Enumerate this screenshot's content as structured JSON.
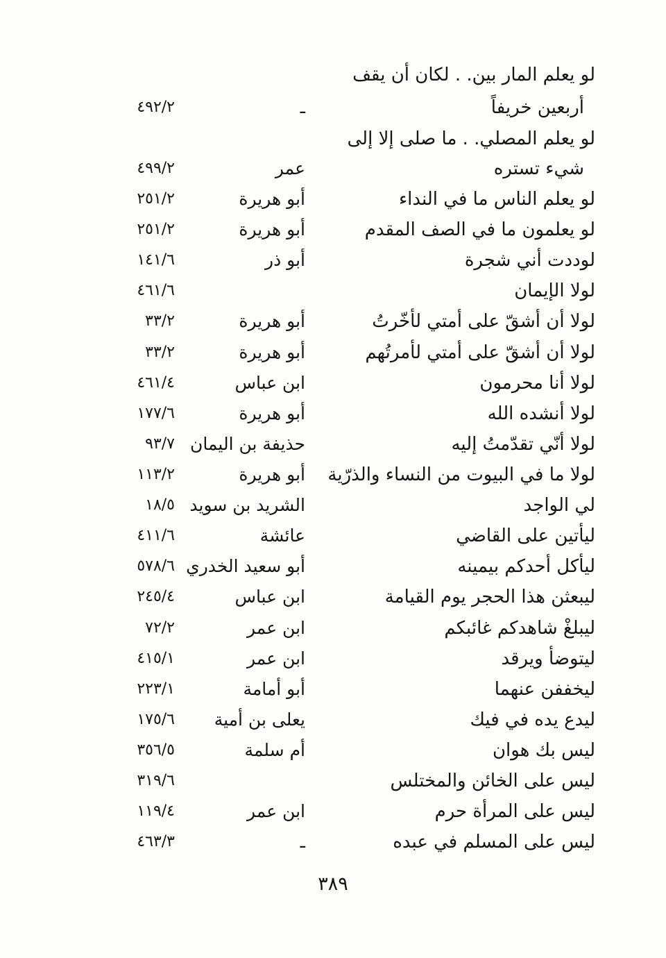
{
  "page": {
    "number": "٣٨٩"
  },
  "entries": [
    {
      "lines": [
        "لو يعلم المار بين. . لكان أن يقف",
        "أربعين خريفاً"
      ],
      "narrator": "ـ",
      "ref": "٤٩٢/٢"
    },
    {
      "lines": [
        "لو يعلم المصلي. . ما صلى إلا إلى",
        "شيء تستره"
      ],
      "narrator": "عمر",
      "ref": "٤٩٩/٢"
    },
    {
      "lines": [
        "لو يعلم الناس ما في النداء"
      ],
      "narrator": "أبو هريرة",
      "ref": "٢٥١/٢"
    },
    {
      "lines": [
        "لو يعلمون ما في الصف المقدم"
      ],
      "narrator": "أبو هريرة",
      "ref": "٢٥١/٢"
    },
    {
      "lines": [
        "لوددت أني شجرة"
      ],
      "narrator": "أبو ذر",
      "ref": "١٤١/٦"
    },
    {
      "lines": [
        "لولا الإيمان"
      ],
      "narrator": "",
      "ref": "٤٦١/٦"
    },
    {
      "lines": [
        "لولا أن أشقّ على أمتي لأخّرتُ"
      ],
      "narrator": "أبو هريرة",
      "ref": "٣٣/٢"
    },
    {
      "lines": [
        "لولا أن أشقّ على أمتي لأمرتُهم"
      ],
      "narrator": "أبو هريرة",
      "ref": "٣٣/٢"
    },
    {
      "lines": [
        "لولا أنا محرمون"
      ],
      "narrator": "ابن عباس",
      "ref": "٤٦١/٤"
    },
    {
      "lines": [
        "لولا أنشده الله"
      ],
      "narrator": "أبو هريرة",
      "ref": "١٧٧/٦"
    },
    {
      "lines": [
        "لولا أنّي تقدّمتُ إليه"
      ],
      "narrator": "حذيفة بن اليمان",
      "ref": "٩٣/٧"
    },
    {
      "lines": [
        "لولا ما في البيوت من النساء والذرّية"
      ],
      "narrator": "أبو هريرة",
      "ref": "١١٣/٢"
    },
    {
      "lines": [
        "لي الواجد"
      ],
      "narrator": "الشريد بن سويد",
      "ref": "١٨/٥"
    },
    {
      "lines": [
        "ليأتين على القاضي"
      ],
      "narrator": "عائشة",
      "ref": "٤١١/٦"
    },
    {
      "lines": [
        "ليأكل أحدكم بيمينه"
      ],
      "narrator": "أبو سعيد الخدري",
      "ref": "٥٧٨/٦"
    },
    {
      "lines": [
        "ليبعثن هذا الحجر يوم القيامة"
      ],
      "narrator": "ابن عباس",
      "ref": "٢٤٥/٤"
    },
    {
      "lines": [
        "ليبلغْ شاهدكم غائبكم"
      ],
      "narrator": "ابن عمر",
      "ref": "٧٢/٢"
    },
    {
      "lines": [
        "ليتوضأ ويرقد"
      ],
      "narrator": "ابن عمر",
      "ref": "٤١٥/١"
    },
    {
      "lines": [
        "ليخففن عنهما"
      ],
      "narrator": "أبو أمامة",
      "ref": "٢٢٣/١"
    },
    {
      "lines": [
        "ليدع يده في فيك"
      ],
      "narrator": "يعلى بن أمية",
      "ref": "١٧٥/٦"
    },
    {
      "lines": [
        "ليس بك هوان"
      ],
      "narrator": "أم سلمة",
      "ref": "٣٥٦/٥"
    },
    {
      "lines": [
        "ليس على الخائن والمختلس"
      ],
      "narrator": "",
      "ref": "٣١٩/٦"
    },
    {
      "lines": [
        "ليس على المرأة حرم"
      ],
      "narrator": "ابن عمر",
      "ref": "١١٩/٤"
    },
    {
      "lines": [
        "ليس على المسلم في عبده"
      ],
      "narrator": "ـ",
      "ref": "٤٦٣/٣"
    }
  ]
}
